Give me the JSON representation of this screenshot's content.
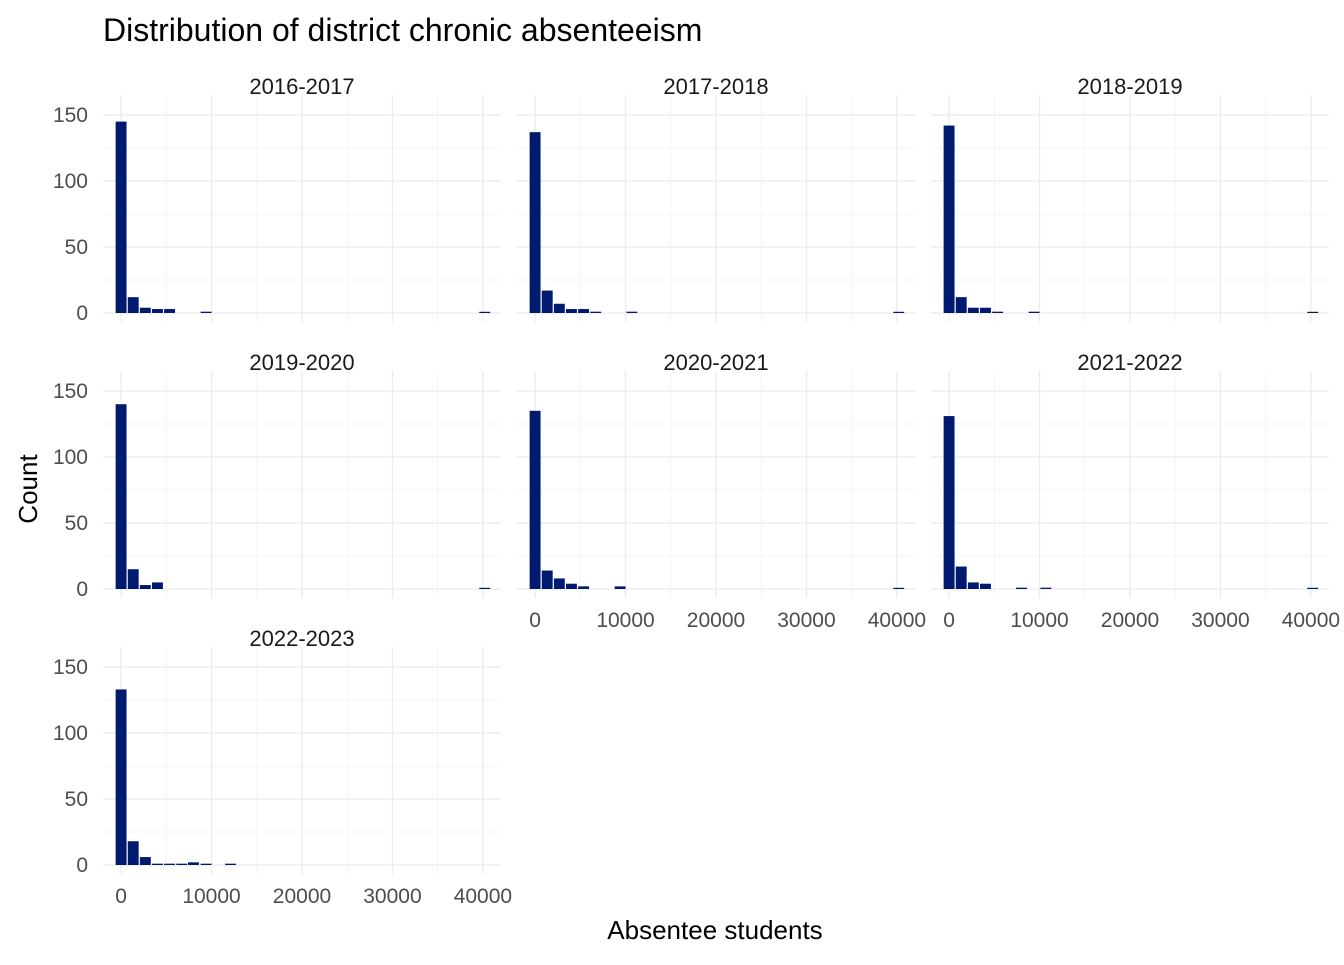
{
  "chart_data": {
    "type": "bar",
    "title": "Distribution of district chronic absenteeism",
    "xlabel": "Absentee students",
    "ylabel": "Count",
    "xlim": [
      -2000,
      42000
    ],
    "ylim": [
      0,
      150
    ],
    "x_ticks": [
      0,
      10000,
      20000,
      30000,
      40000
    ],
    "y_ticks": [
      0,
      50,
      100,
      150
    ],
    "grid": true,
    "bar_color": "#001a70",
    "bin_width": 1340,
    "panels": [
      {
        "label": "2016-2017",
        "bins": [
          {
            "x": 0,
            "count": 145
          },
          {
            "x": 1340,
            "count": 12
          },
          {
            "x": 2680,
            "count": 4
          },
          {
            "x": 4020,
            "count": 3
          },
          {
            "x": 5360,
            "count": 3
          },
          {
            "x": 9400,
            "count": 1
          },
          {
            "x": 40200,
            "count": 0.5
          }
        ]
      },
      {
        "label": "2017-2018",
        "bins": [
          {
            "x": 0,
            "count": 137
          },
          {
            "x": 1340,
            "count": 17
          },
          {
            "x": 2680,
            "count": 7
          },
          {
            "x": 4020,
            "count": 3
          },
          {
            "x": 5360,
            "count": 3
          },
          {
            "x": 6700,
            "count": 1
          },
          {
            "x": 10700,
            "count": 1
          },
          {
            "x": 40200,
            "count": 0.5
          }
        ]
      },
      {
        "label": "2018-2019",
        "bins": [
          {
            "x": 0,
            "count": 142
          },
          {
            "x": 1340,
            "count": 12
          },
          {
            "x": 2680,
            "count": 4
          },
          {
            "x": 4020,
            "count": 4
          },
          {
            "x": 5360,
            "count": 1
          },
          {
            "x": 9400,
            "count": 1
          },
          {
            "x": 40200,
            "count": 0.5
          }
        ]
      },
      {
        "label": "2019-2020",
        "bins": [
          {
            "x": 0,
            "count": 140
          },
          {
            "x": 1340,
            "count": 15
          },
          {
            "x": 2680,
            "count": 3
          },
          {
            "x": 4020,
            "count": 5
          },
          {
            "x": 40200,
            "count": 0.5
          }
        ]
      },
      {
        "label": "2020-2021",
        "bins": [
          {
            "x": 0,
            "count": 135
          },
          {
            "x": 1340,
            "count": 14
          },
          {
            "x": 2680,
            "count": 8
          },
          {
            "x": 4020,
            "count": 4
          },
          {
            "x": 5360,
            "count": 2
          },
          {
            "x": 9400,
            "count": 2
          },
          {
            "x": 40200,
            "count": 0.5
          }
        ]
      },
      {
        "label": "2021-2022",
        "bins": [
          {
            "x": 0,
            "count": 131
          },
          {
            "x": 1340,
            "count": 17
          },
          {
            "x": 2680,
            "count": 5
          },
          {
            "x": 4020,
            "count": 4
          },
          {
            "x": 8000,
            "count": 1
          },
          {
            "x": 10700,
            "count": 1
          },
          {
            "x": 40200,
            "count": 0.5
          }
        ]
      },
      {
        "label": "2022-2023",
        "bins": [
          {
            "x": 0,
            "count": 133
          },
          {
            "x": 1340,
            "count": 18
          },
          {
            "x": 2680,
            "count": 6
          },
          {
            "x": 4020,
            "count": 1
          },
          {
            "x": 5360,
            "count": 1
          },
          {
            "x": 6700,
            "count": 1
          },
          {
            "x": 8000,
            "count": 2
          },
          {
            "x": 9400,
            "count": 1
          },
          {
            "x": 12100,
            "count": 1
          }
        ]
      }
    ]
  }
}
